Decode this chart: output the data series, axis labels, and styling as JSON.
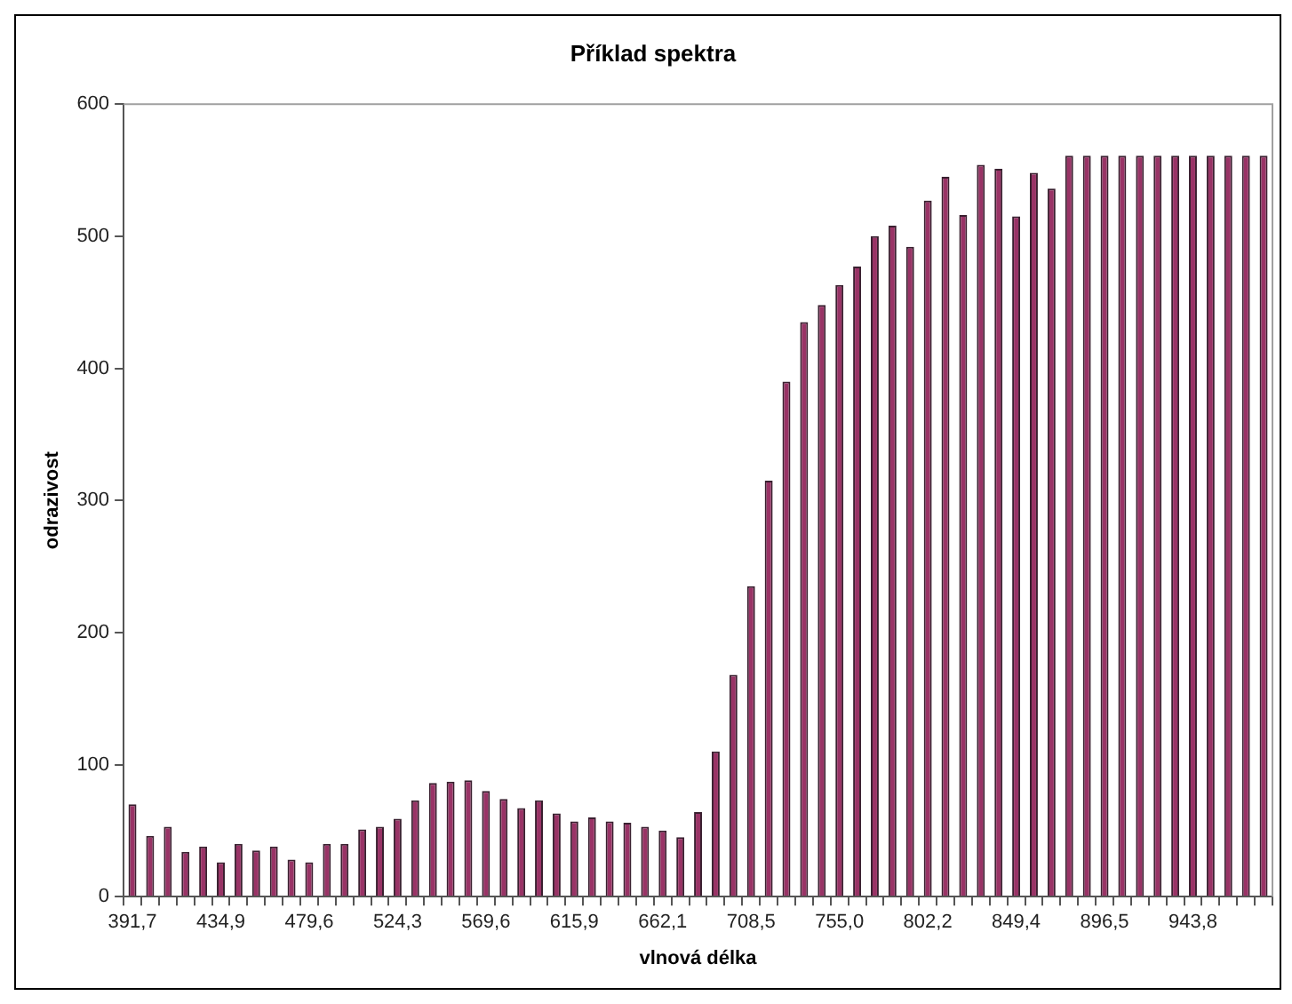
{
  "chart_data": {
    "type": "bar",
    "title": "Příklad spektra",
    "xlabel": "vlnová délka",
    "ylabel": "odrazivost",
    "categories": [
      "391,7",
      null,
      null,
      null,
      null,
      "434,9",
      null,
      null,
      null,
      null,
      "479,6",
      null,
      null,
      null,
      null,
      "524,3",
      null,
      null,
      null,
      null,
      "569,6",
      null,
      null,
      null,
      null,
      "615,9",
      null,
      null,
      null,
      null,
      "662,1",
      null,
      null,
      null,
      null,
      "708,5",
      null,
      null,
      null,
      null,
      "755,0",
      null,
      null,
      null,
      null,
      "802,2",
      null,
      null,
      null,
      null,
      "849,4",
      null,
      null,
      null,
      null,
      "896,5",
      null,
      null,
      null,
      null,
      "943,8",
      null,
      null,
      null,
      null
    ],
    "values": [
      70,
      46,
      53,
      34,
      38,
      26,
      40,
      35,
      38,
      28,
      26,
      40,
      40,
      51,
      53,
      59,
      73,
      86,
      87,
      88,
      80,
      74,
      67,
      73,
      63,
      57,
      60,
      57,
      56,
      53,
      50,
      45,
      64,
      110,
      168,
      235,
      315,
      390,
      435,
      448,
      463,
      477,
      500,
      508,
      492,
      527,
      545,
      516,
      554,
      551,
      515,
      548,
      536,
      561,
      561,
      561,
      561,
      561,
      561,
      561,
      561,
      561,
      561,
      561,
      561
    ],
    "color": "#993366",
    "ylim": [
      0,
      600
    ],
    "yticks": [
      0,
      100,
      200,
      300,
      400,
      500,
      600
    ],
    "grid": false,
    "legend": false
  }
}
